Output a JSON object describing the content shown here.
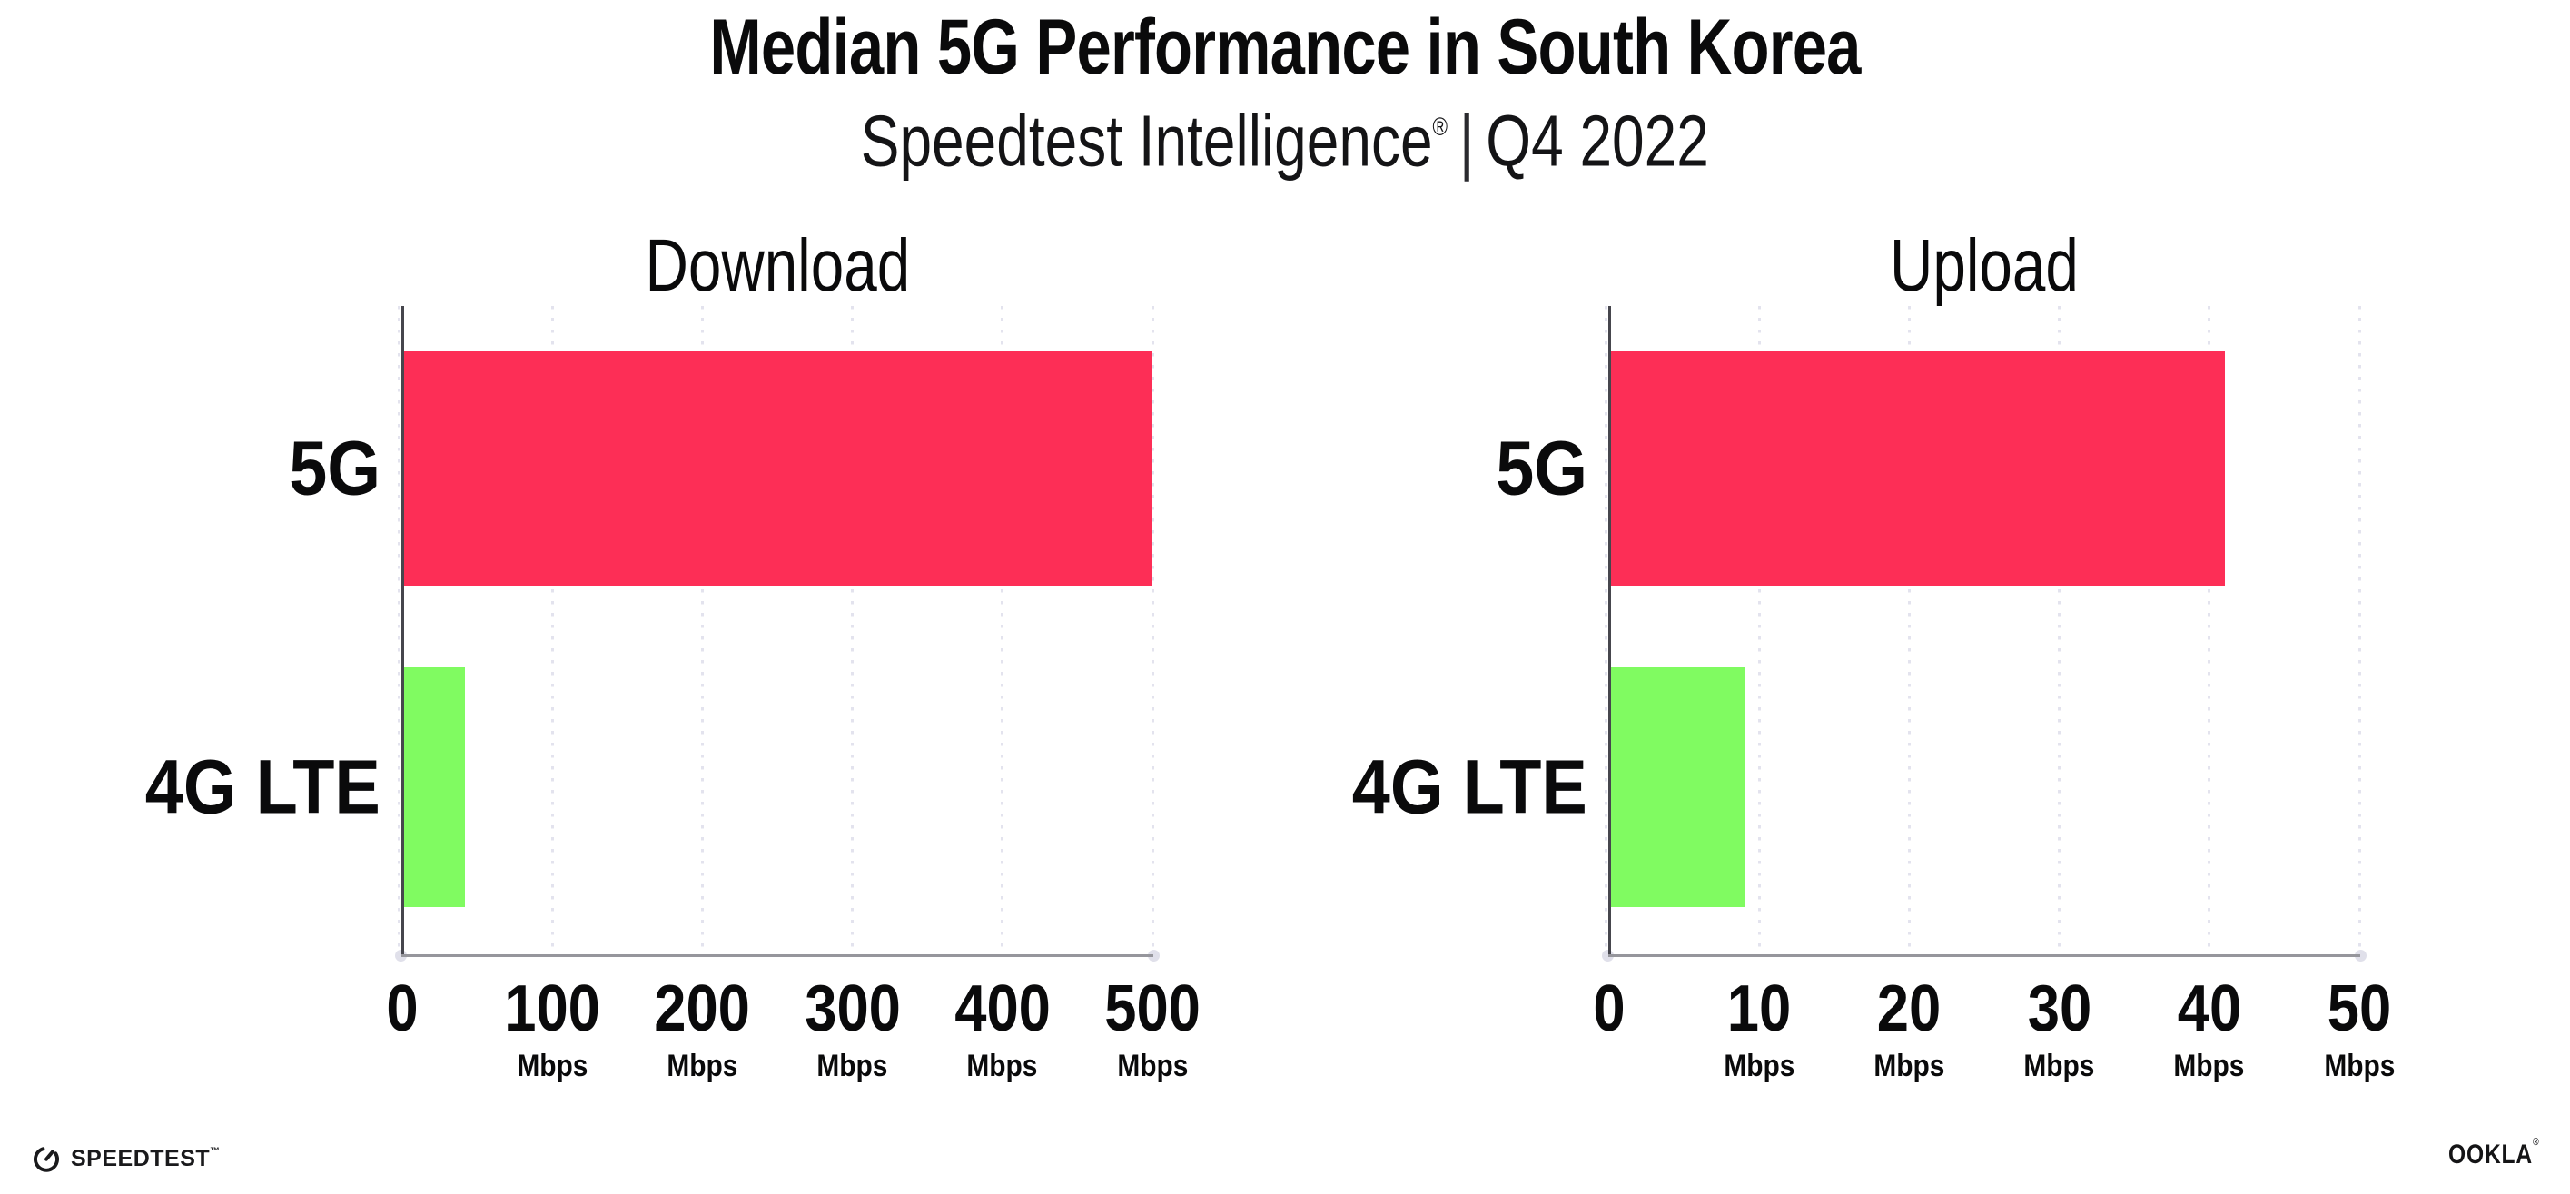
{
  "header": {
    "title": "Median 5G Performance in South Korea",
    "subtitle": {
      "brand": "Speedtest Intelligence",
      "registered_mark": "®",
      "divider": "|",
      "period": "Q4 2022"
    }
  },
  "chart_data": [
    {
      "type": "bar",
      "orientation": "horizontal",
      "title": "Download",
      "categories": [
        "5G",
        "4G LTE"
      ],
      "values": [
        499,
        41
      ],
      "unit": "Mbps",
      "xlim": [
        0,
        500
      ],
      "xticks": [
        0,
        100,
        200,
        300,
        400,
        500
      ],
      "bar_colors": [
        "#FD2E56",
        "#80FB61"
      ],
      "grid": "dotted-vertical",
      "legend": "none"
    },
    {
      "type": "bar",
      "orientation": "horizontal",
      "title": "Upload",
      "categories": [
        "5G",
        "4G LTE"
      ],
      "values": [
        41,
        9
      ],
      "unit": "Mbps",
      "xlim": [
        0,
        50
      ],
      "xticks": [
        0,
        10,
        20,
        30,
        40,
        50
      ],
      "bar_colors": [
        "#FD2E56",
        "#80FB61"
      ],
      "grid": "dotted-vertical",
      "legend": "none"
    }
  ],
  "footer": {
    "speedtest_wordmark": "SPEEDTEST",
    "speedtest_trademark": "™",
    "ookla_wordmark": "OOKLA",
    "ookla_registered": "®"
  },
  "colors": {
    "bar_5g": "#FD2E56",
    "bar_4g_lte": "#80FB61",
    "gridline": "#E3E3EE",
    "y_axis": "#46464D",
    "x_axis": "#96969C",
    "text": "#0A0A0B",
    "background": "#FFFFFF"
  }
}
